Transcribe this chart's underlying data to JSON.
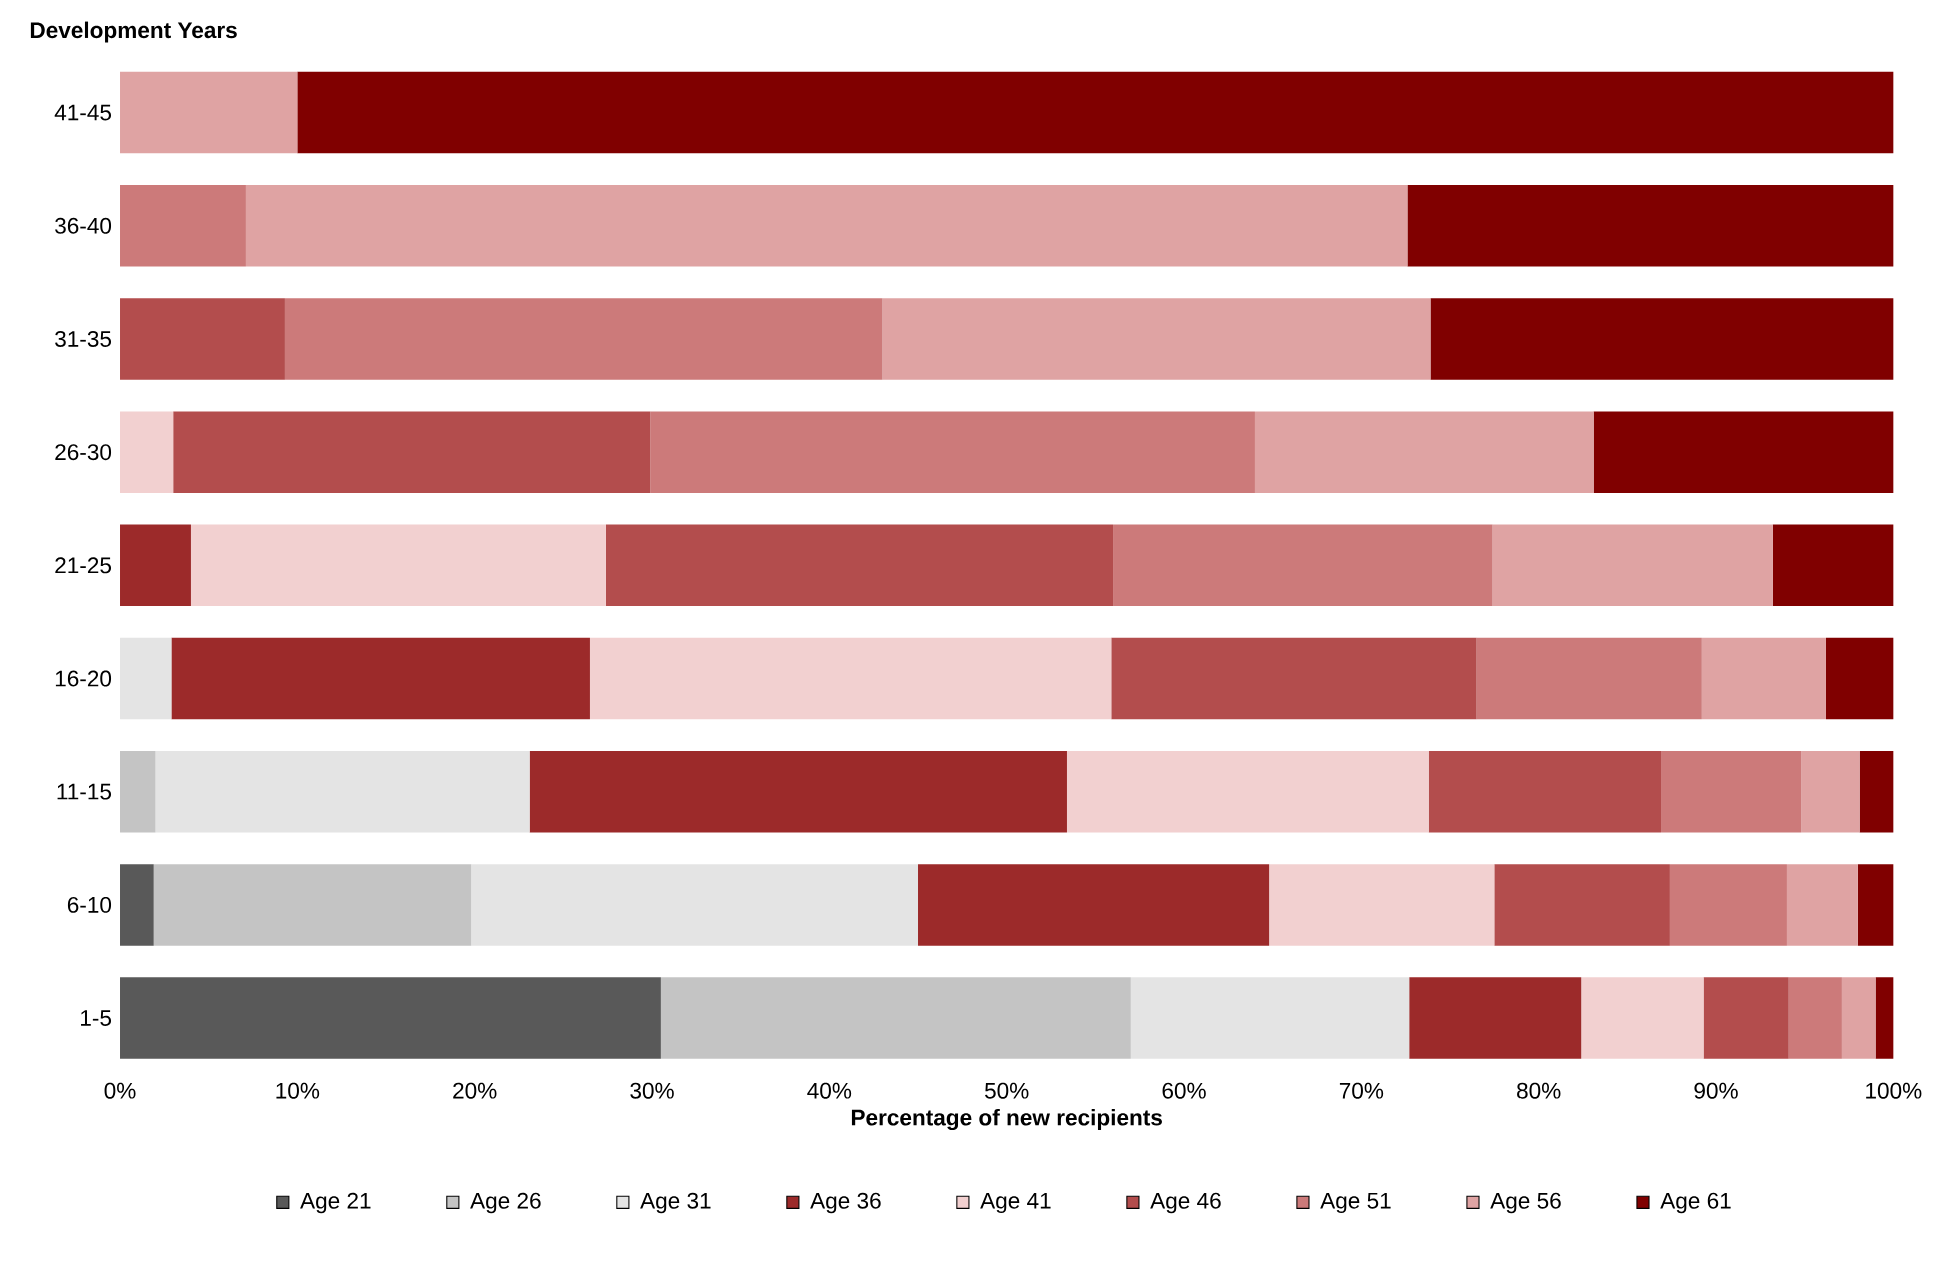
{
  "chart_data": {
    "type": "bar",
    "orientation": "horizontal",
    "stacked": true,
    "ylabel": "Development Years",
    "xlabel": "Percentage of new recipients",
    "categories": [
      "41-45",
      "36-40",
      "31-35",
      "26-30",
      "21-25",
      "16-20",
      "11-15",
      "6-10",
      "1-5"
    ],
    "xlim": [
      0,
      100
    ],
    "xticks": [
      {
        "value": 0,
        "label": "0%"
      },
      {
        "value": 10,
        "label": "10%"
      },
      {
        "value": 20,
        "label": "20%"
      },
      {
        "value": 30,
        "label": "30%"
      },
      {
        "value": 40,
        "label": "40%"
      },
      {
        "value": 50,
        "label": "50%"
      },
      {
        "value": 60,
        "label": "60%"
      },
      {
        "value": 70,
        "label": "70%"
      },
      {
        "value": 80,
        "label": "80%"
      },
      {
        "value": 90,
        "label": "90%"
      },
      {
        "value": 100,
        "label": "100%"
      }
    ],
    "legend": "bottom",
    "grid": false,
    "series": [
      {
        "name": "Age 21",
        "color": "#595959",
        "values": [
          0,
          0,
          0,
          0,
          0,
          0,
          0,
          1.9,
          30.5
        ]
      },
      {
        "name": "Age 26",
        "color": "#c4c4c4",
        "values": [
          0,
          0,
          0,
          0,
          0,
          0,
          2.0,
          17.9,
          26.5
        ]
      },
      {
        "name": "Age 31",
        "color": "#e4e4e4",
        "values": [
          0,
          0,
          0,
          0,
          0,
          2.9,
          21.1,
          25.2,
          15.7
        ]
      },
      {
        "name": "Age 36",
        "color": "#9c2a2a",
        "values": [
          0,
          0,
          0,
          0,
          4.0,
          23.6,
          30.3,
          19.8,
          9.7
        ]
      },
      {
        "name": "Age 41",
        "color": "#f2d0d0",
        "values": [
          0,
          0,
          0,
          3.0,
          23.4,
          29.4,
          20.4,
          12.7,
          6.9
        ]
      },
      {
        "name": "Age 46",
        "color": "#b34d4d",
        "values": [
          0,
          0,
          9.3,
          26.9,
          28.6,
          20.6,
          13.1,
          9.9,
          4.8
        ]
      },
      {
        "name": "Age 51",
        "color": "#cc7a7a",
        "values": [
          0,
          7.1,
          33.7,
          34.1,
          21.4,
          12.7,
          7.9,
          6.6,
          3.0
        ]
      },
      {
        "name": "Age 56",
        "color": "#dfa3a3",
        "values": [
          10.0,
          65.5,
          30.9,
          19.1,
          15.8,
          7.0,
          3.3,
          4.0,
          1.9
        ]
      },
      {
        "name": "Age 61",
        "color": "#800000",
        "values": [
          90.0,
          27.4,
          26.1,
          16.9,
          6.8,
          3.8,
          1.9,
          2.0,
          1.0
        ]
      }
    ]
  }
}
